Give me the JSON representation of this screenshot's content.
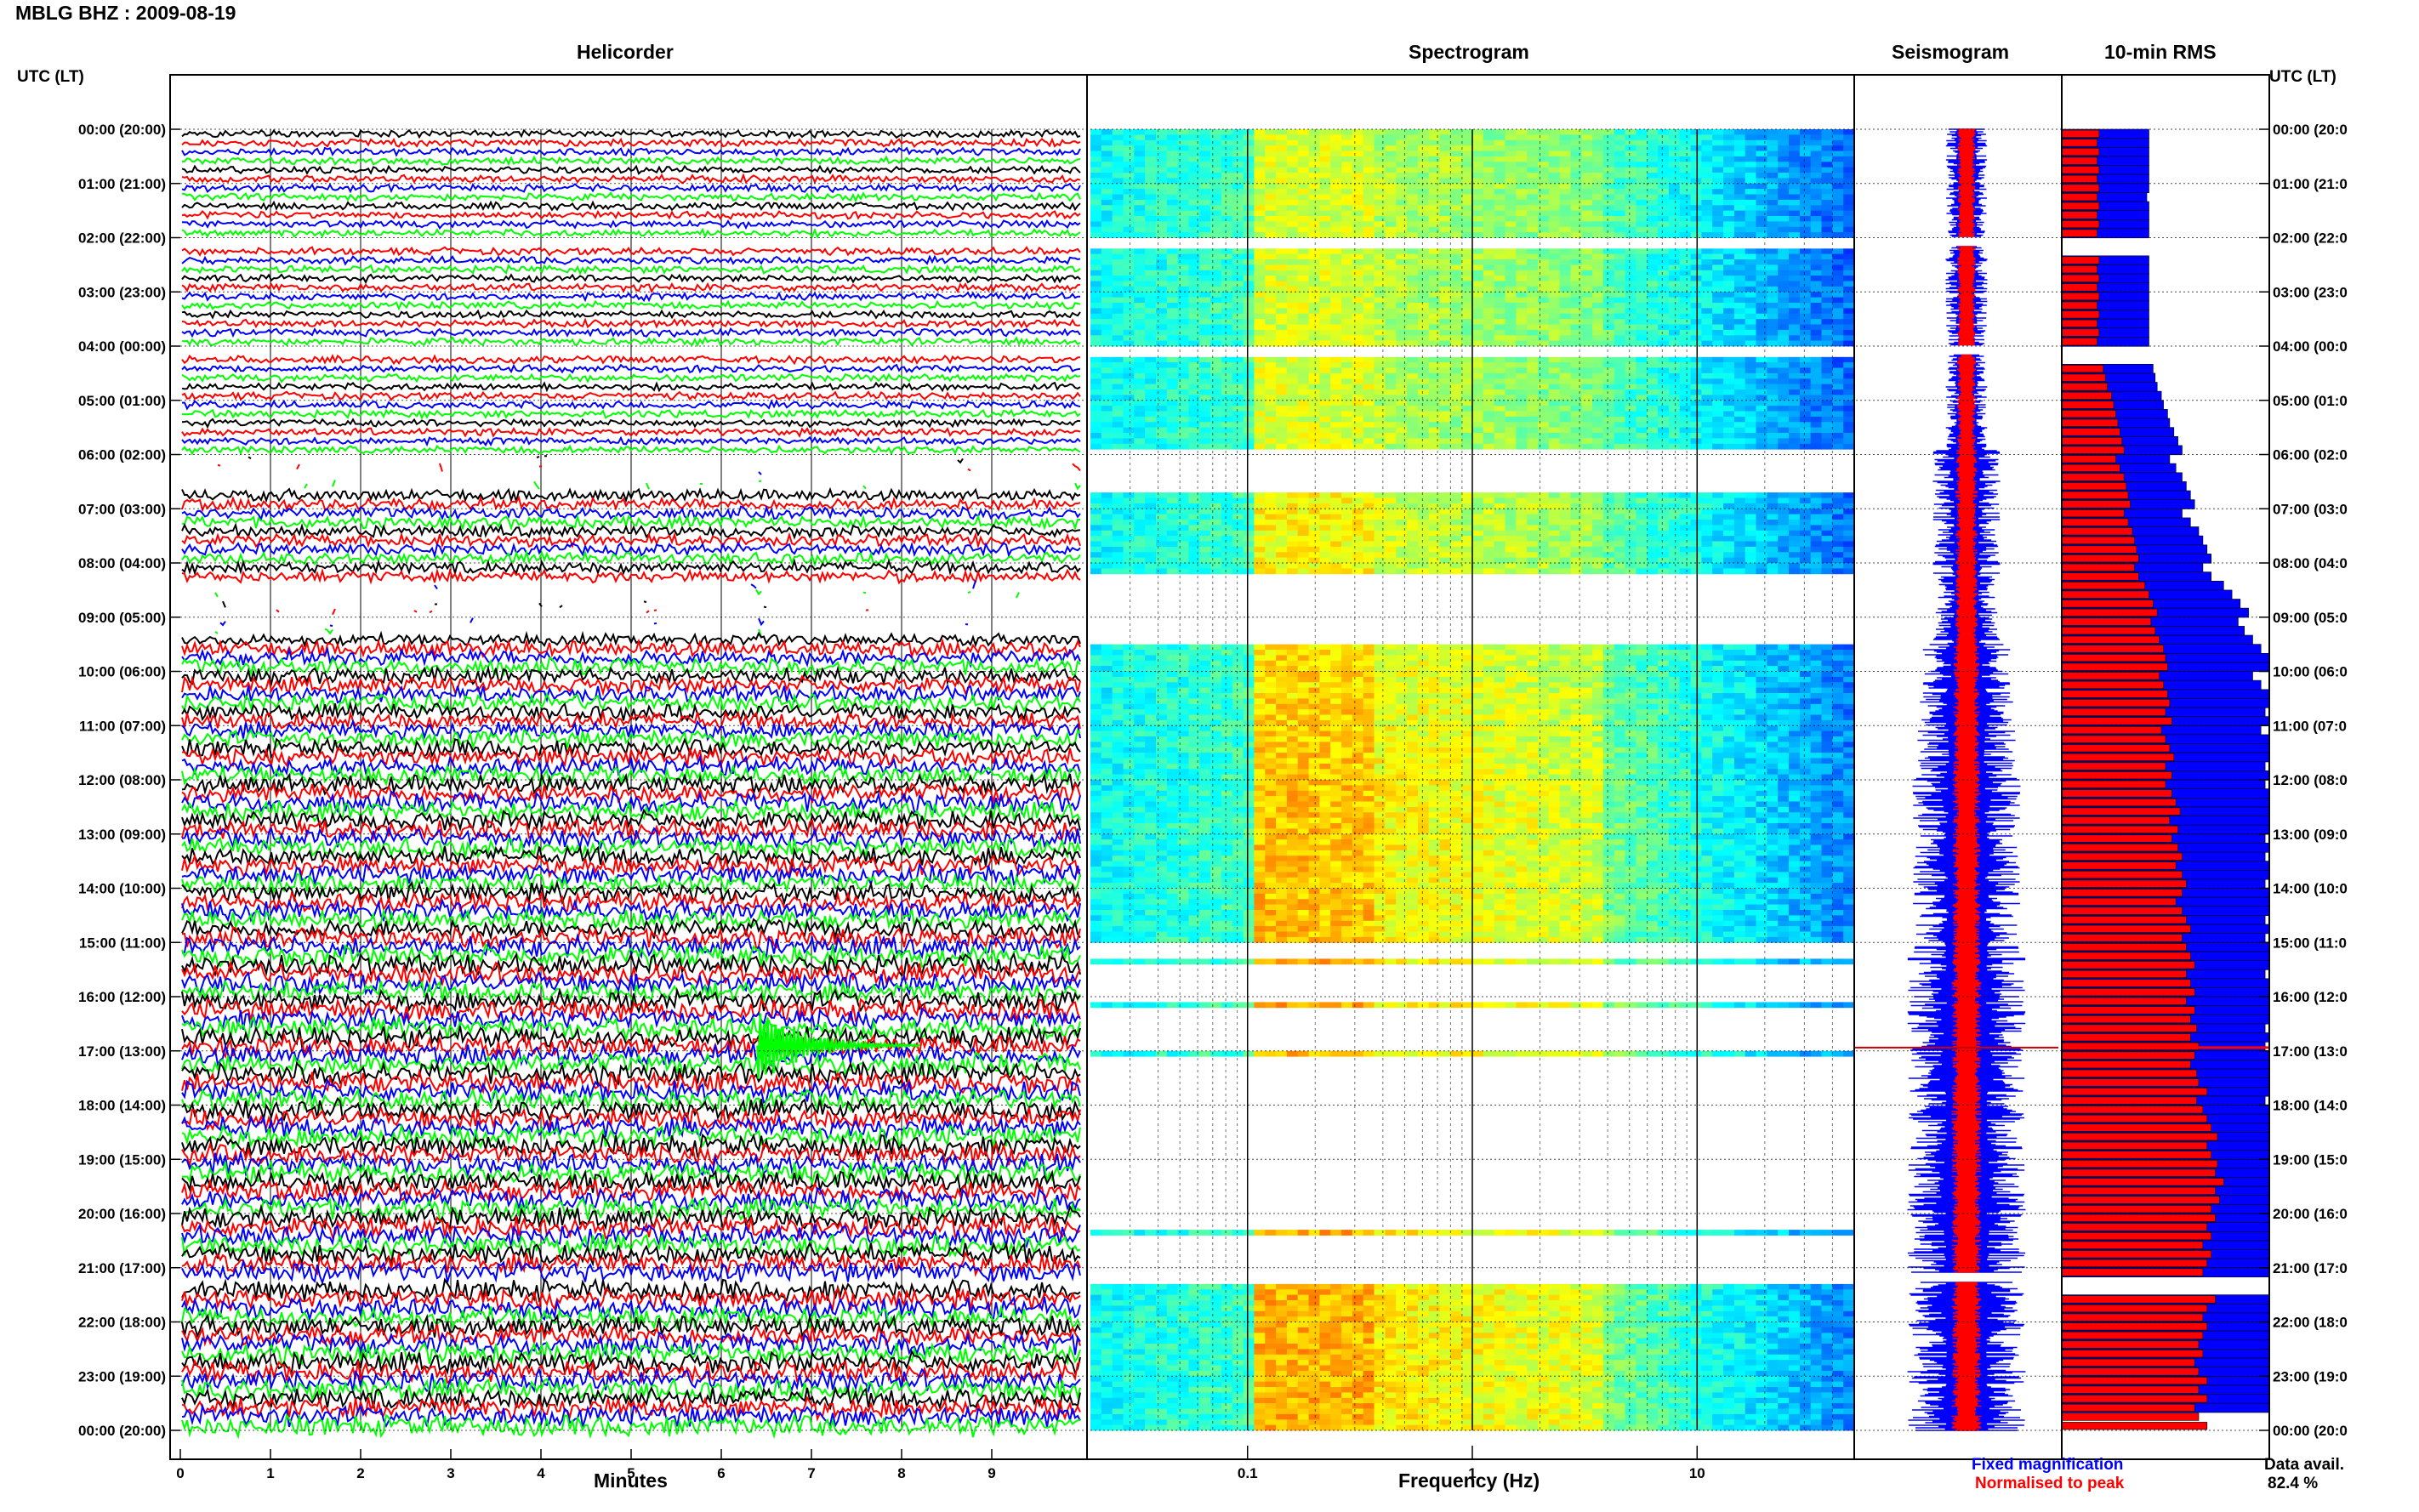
{
  "header": {
    "station_title": "MBLG BHZ : 2009-08-19"
  },
  "panels": {
    "helicorder_title": "Helicorder",
    "spectrogram_title": "Spectrogram",
    "seismogram_title": "Seismogram",
    "rms_title": "10-min RMS"
  },
  "axes": {
    "left_time_header": "UTC (LT)",
    "right_time_header": "UTC (LT)",
    "helicorder_xlabel": "Minutes",
    "spectrogram_xlabel": "Frequency (Hz)",
    "time_labels_left": [
      "00:00 (20:00)",
      "01:00 (21:00)",
      "02:00 (22:00)",
      "03:00 (23:00)",
      "04:00 (00:00)",
      "05:00 (01:00)",
      "06:00 (02:00)",
      "07:00 (03:00)",
      "08:00 (04:00)",
      "09:00 (05:00)",
      "10:00 (06:00)",
      "11:00 (07:00)",
      "12:00 (08:00)",
      "13:00 (09:00)",
      "14:00 (10:00)",
      "15:00 (11:00)",
      "16:00 (12:00)",
      "17:00 (13:00)",
      "18:00 (14:00)",
      "19:00 (15:00)",
      "20:00 (16:00)",
      "21:00 (17:00)",
      "22:00 (18:00)",
      "23:00 (19:00)",
      "00:00 (20:00)"
    ],
    "time_labels_right": [
      "00:00 (20:0",
      "01:00 (21:0",
      "02:00 (22:0",
      "03:00 (23:0",
      "04:00 (00:0",
      "05:00 (01:0",
      "06:00 (02:0",
      "07:00 (03:0",
      "08:00 (04:0",
      "09:00 (05:0",
      "10:00 (06:0",
      "11:00 (07:0",
      "12:00 (08:0",
      "13:00 (09:0",
      "14:00 (10:0",
      "15:00 (11:0",
      "16:00 (12:0",
      "17:00 (13:0",
      "18:00 (14:0",
      "19:00 (15:0",
      "20:00 (16:0",
      "21:00 (17:0",
      "22:00 (18:0",
      "23:00 (19:0",
      "00:00 (20:0"
    ],
    "minute_ticks": [
      "0",
      "1",
      "2",
      "3",
      "4",
      "5",
      "6",
      "7",
      "8",
      "9"
    ],
    "frequency_ticks": [
      "0.1",
      "1",
      "10"
    ]
  },
  "legend": {
    "fixed_label": "Fixed magnification",
    "normalised_label": "Normalised to peak",
    "fixed_color": "#0000ff",
    "normalised_color": "#ff0000",
    "data_avail_label": "Data avail.",
    "data_avail_value": "82.4 %"
  },
  "chart_data": {
    "type": "heatmap",
    "title": "MBLG BHZ : 2009-08-19",
    "helicorder": {
      "xlabel": "Minutes",
      "xlim": [
        0,
        10
      ],
      "trace_colors": [
        "#000000",
        "#ff0000",
        "#0000ff",
        "#00ff00"
      ],
      "event": {
        "hour": 16.9,
        "minute": 6.4
      }
    },
    "spectrogram": {
      "xlabel": "Frequency (Hz)",
      "xscale": "log",
      "xlim": [
        0.02,
        50
      ]
    },
    "seismogram": {
      "series": [
        {
          "name": "Fixed magnification",
          "color": "#0000ff"
        },
        {
          "name": "Normalised to peak",
          "color": "#ff0000"
        }
      ]
    },
    "rms_10min": {
      "hours_start": 0,
      "hours_end": 24,
      "data_gaps_hours": [
        [
          2.0,
          2.3
        ],
        [
          4.0,
          4.3
        ],
        [
          21.1,
          21.4
        ]
      ],
      "blue_relative": [
        0.42,
        0.42,
        0.42,
        0.42,
        0.42,
        0.42,
        0.42,
        0.41,
        0.42,
        0.42,
        0.42,
        0.42,
        0.42,
        0.41,
        0.42,
        0.42,
        0.42,
        0.42,
        0.42,
        0.42,
        0.42,
        0.42,
        0.42,
        0.42,
        0.42,
        0.43,
        0.44,
        0.45,
        0.46,
        0.48,
        0.49,
        0.51,
        0.52,
        0.54,
        0.56,
        0.58,
        0.52,
        0.55,
        0.58,
        0.6,
        0.62,
        0.64,
        0.58,
        0.62,
        0.66,
        0.68,
        0.7,
        0.72,
        0.68,
        0.72,
        0.78,
        0.82,
        0.86,
        0.9,
        0.85,
        0.88,
        0.92,
        0.96,
        1.0,
        1.0,
        0.92,
        0.96,
        1.0,
        1.0,
        0.98,
        1.0,
        0.96,
        1.0,
        1.0,
        1.0,
        0.98,
        1.0,
        0.98,
        1.0,
        1.0,
        1.0,
        1.0,
        1.0,
        0.98,
        1.0,
        0.98,
        1.0,
        1.0,
        0.98,
        1.0,
        1.0,
        1.0,
        0.98,
        1.0,
        0.98,
        1.0,
        1.0,
        1.0,
        0.98,
        1.0,
        1.0,
        1.0,
        1.0,
        1.0,
        0.98,
        1.0,
        0.98,
        1.0,
        1.0,
        1.0,
        1.0,
        1.0,
        0.98,
        1.0,
        1.0,
        1.0,
        1.0,
        1.0,
        1.0,
        1.0,
        1.0,
        1.0,
        1.0,
        1.0,
        1.0,
        1.0,
        1.0,
        1.0,
        1.0,
        1.0,
        1.0,
        1.0,
        1.0,
        1.0,
        1.0,
        1.0,
        1.0,
        1.0,
        1.0,
        1.0,
        1.0,
        1.0,
        1.0,
        1.0,
        1.0,
        1.0,
        1.0
      ],
      "red_relative": [
        0.18,
        0.17,
        0.18,
        0.17,
        0.18,
        0.17,
        0.18,
        0.17,
        0.18,
        0.17,
        0.18,
        0.17,
        0.18,
        0.17,
        0.18,
        0.17,
        0.18,
        0.17,
        0.18,
        0.17,
        0.18,
        0.17,
        0.18,
        0.17,
        0.18,
        0.19,
        0.2,
        0.21,
        0.22,
        0.24,
        0.25,
        0.26,
        0.27,
        0.28,
        0.29,
        0.3,
        0.26,
        0.28,
        0.3,
        0.31,
        0.32,
        0.33,
        0.3,
        0.32,
        0.34,
        0.35,
        0.36,
        0.37,
        0.35,
        0.37,
        0.4,
        0.42,
        0.44,
        0.46,
        0.43,
        0.45,
        0.47,
        0.49,
        0.5,
        0.51,
        0.47,
        0.49,
        0.51,
        0.52,
        0.5,
        0.53,
        0.48,
        0.5,
        0.52,
        0.54,
        0.5,
        0.53,
        0.5,
        0.53,
        0.55,
        0.57,
        0.52,
        0.56,
        0.53,
        0.56,
        0.58,
        0.55,
        0.58,
        0.6,
        0.58,
        0.55,
        0.58,
        0.6,
        0.62,
        0.58,
        0.6,
        0.62,
        0.64,
        0.6,
        0.62,
        0.64,
        0.6,
        0.64,
        0.62,
        0.65,
        0.62,
        0.66,
        0.64,
        0.62,
        0.65,
        0.66,
        0.7,
        0.65,
        0.68,
        0.7,
        0.72,
        0.75,
        0.7,
        0.72,
        0.75,
        0.74,
        0.78,
        0.74,
        0.76,
        0.72,
        0.74,
        0.7,
        0.72,
        0.68,
        0.72,
        0.7,
        0.68,
        0.66,
        0.7,
        0.74,
        0.7,
        0.68,
        0.7,
        0.68,
        0.66,
        0.68,
        0.64,
        0.66,
        0.7,
        0.66,
        0.7,
        0.64,
        0.66,
        0.7
      ]
    }
  }
}
